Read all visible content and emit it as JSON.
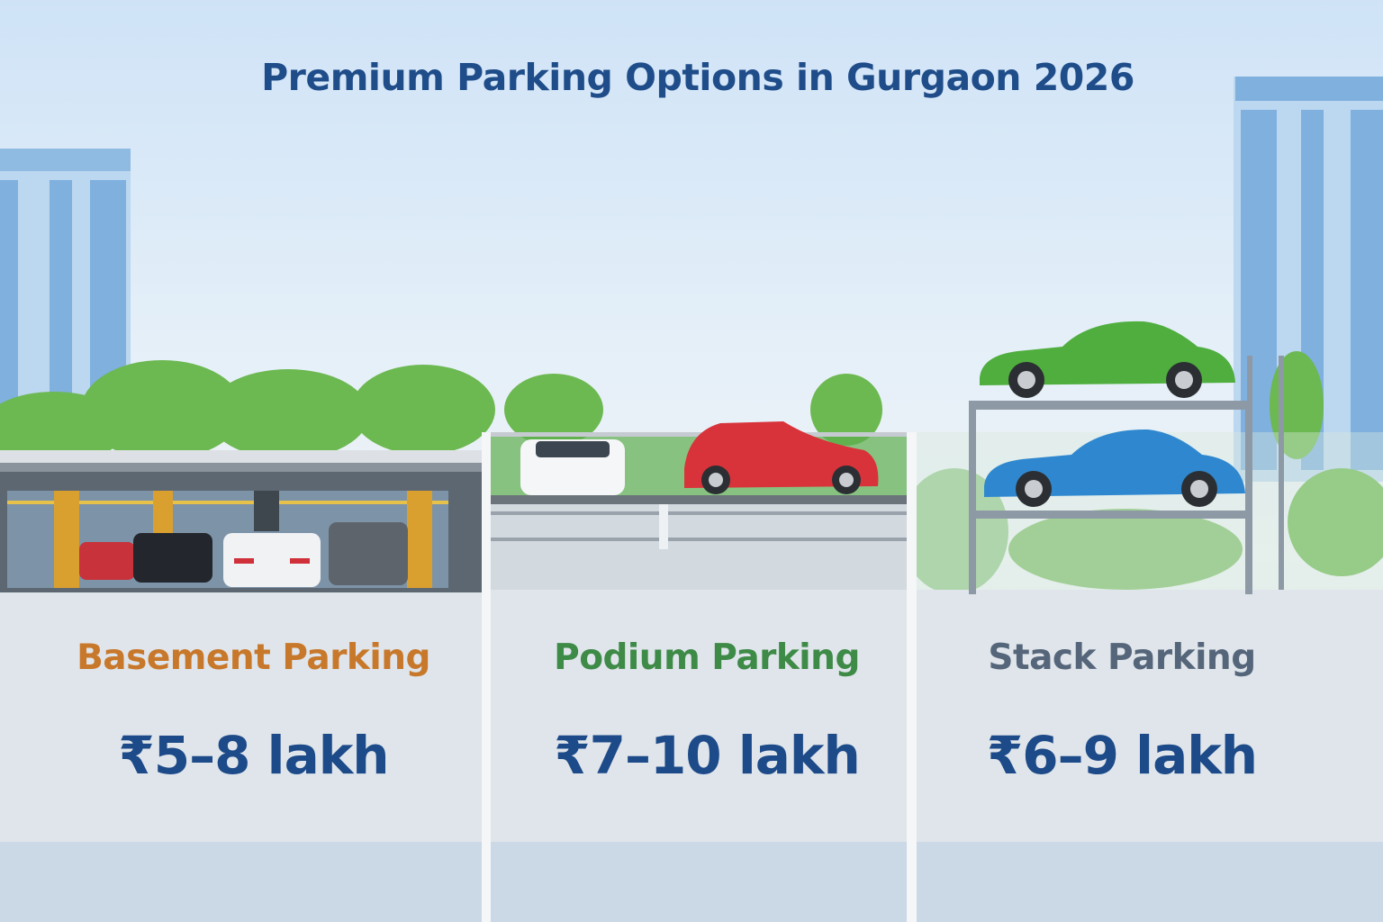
{
  "title": "Premium Parking Options in Gurgaon 2026",
  "options": [
    {
      "name": "Basement Parking",
      "price": "₹5–8 lakh",
      "color": "#c8782a"
    },
    {
      "name": "Podium Parking",
      "price": "₹7–10 lakh",
      "color": "#3e8a47"
    },
    {
      "name": "Stack Parking",
      "price": "₹6–9 lakh",
      "color": "#56667a"
    }
  ],
  "colors": {
    "title": "#1f4d8a",
    "price": "#1d4a88"
  }
}
